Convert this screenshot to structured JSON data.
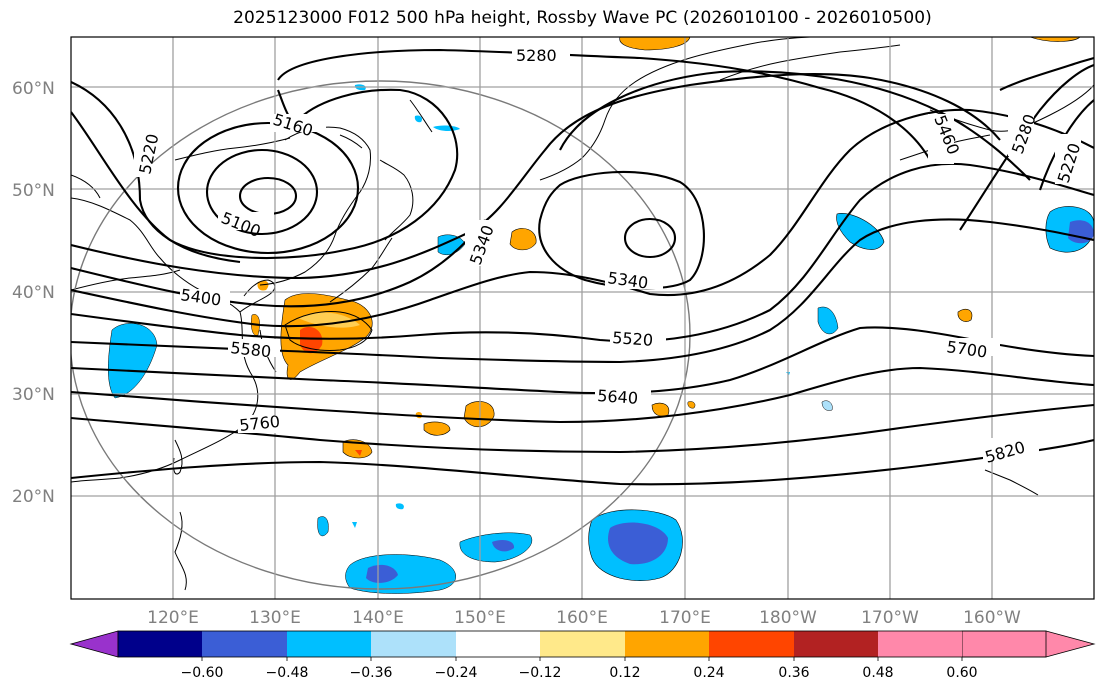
{
  "title": "2025123000 F012 500 hPa height, Rossby Wave PC (2026010100 - 2026010500)",
  "lat_labels": [
    "60°N",
    "50°N",
    "40°N",
    "30°N",
    "20°N"
  ],
  "lon_labels": [
    "120°E",
    "130°E",
    "140°E",
    "150°E",
    "160°E",
    "170°E",
    "180°W",
    "170°W",
    "160°W"
  ],
  "contour_labels": [
    "5280",
    "5220",
    "5160",
    "5100",
    "5400",
    "5580",
    "5340",
    "5340",
    "5520",
    "5640",
    "5760",
    "5460",
    "5280",
    "5220",
    "5700",
    "5820"
  ],
  "colorbar": {
    "tick_labels": [
      "−0.60",
      "−0.48",
      "−0.36",
      "−0.24",
      "−0.12",
      "0.12",
      "0.24",
      "0.36",
      "0.48",
      "0.60"
    ],
    "colors": [
      "#9932CC",
      "#00008B",
      "#3B5ED6",
      "#00BFFF",
      "#ADE1FA",
      "#FFFFFF",
      "#FFE98A",
      "#FFA500",
      "#FF4500",
      "#B22222",
      "#FF88AA"
    ]
  }
}
